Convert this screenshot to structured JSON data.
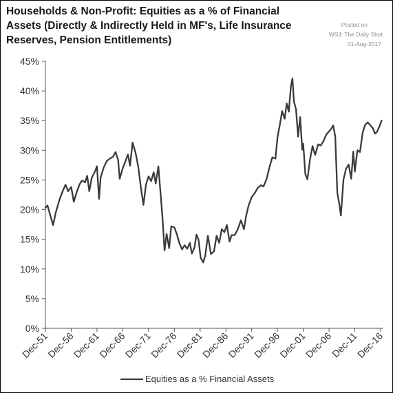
{
  "header": {
    "title_lines": [
      "Households & Non-Profit: Equities as a % of Financial",
      "Assets (Directly & Indirectly Held in MF's, Life Insurance",
      "Reserves, Pension Entitlements)"
    ],
    "posted_lines": [
      "Posted on",
      "WSJ: The Daily Shot",
      "01-Aug-2017"
    ]
  },
  "colors": {
    "series_line": "#3a3a3a",
    "axis": "#555555",
    "text": "#333333",
    "posted_text": "#8c8c8c"
  },
  "chart_data": {
    "type": "line",
    "title": "Households & Non-Profit: Equities as a % of Financial Assets (Directly & Indirectly Held in MF's, Life Insurance Reserves, Pension Entitlements)",
    "xlabel": "",
    "ylabel": "",
    "ylim": [
      0,
      45
    ],
    "xlim": [
      1951.9,
      2017.3
    ],
    "y_ticks": [
      "0%",
      "5%",
      "10%",
      "15%",
      "20%",
      "25%",
      "30%",
      "35%",
      "40%",
      "45%"
    ],
    "x_ticks": [
      "Dec-51",
      "Dec-56",
      "Dec-61",
      "Dec-66",
      "Dec-71",
      "Dec-76",
      "Dec-81",
      "Dec-86",
      "Dec-91",
      "Dec-96",
      "Dec-01",
      "Dec-06",
      "Dec-11",
      "Dec-16"
    ],
    "x_tick_years": [
      1951.9,
      1956.9,
      1961.9,
      1966.9,
      1971.9,
      1976.9,
      1981.9,
      1986.9,
      1991.9,
      1996.9,
      2001.9,
      2006.9,
      2011.9,
      2016.9
    ],
    "grid": false,
    "legend": "bottom-center",
    "series": [
      {
        "name": "Equities as a % Financial Assets",
        "x": [
          1951.9,
          1952.3,
          1952.8,
          1953.4,
          1953.9,
          1954.6,
          1955.2,
          1955.8,
          1956.3,
          1956.9,
          1957.4,
          1957.9,
          1958.5,
          1959.0,
          1959.6,
          1960.0,
          1960.4,
          1960.9,
          1961.5,
          1961.9,
          1962.3,
          1962.6,
          1963.2,
          1963.8,
          1964.4,
          1965.0,
          1965.5,
          1966.0,
          1966.3,
          1966.9,
          1967.4,
          1967.9,
          1968.3,
          1968.8,
          1969.4,
          1969.9,
          1970.4,
          1970.9,
          1971.4,
          1971.9,
          1972.4,
          1972.9,
          1973.3,
          1973.8,
          1974.3,
          1974.6,
          1975.0,
          1975.4,
          1975.9,
          1976.3,
          1976.9,
          1977.4,
          1977.9,
          1978.4,
          1978.9,
          1979.4,
          1979.9,
          1980.3,
          1980.8,
          1981.2,
          1981.6,
          1982.0,
          1982.5,
          1982.9,
          1983.4,
          1984.0,
          1984.6,
          1985.1,
          1985.6,
          1986.1,
          1986.6,
          1987.1,
          1987.6,
          1988.0,
          1988.6,
          1989.2,
          1989.8,
          1990.4,
          1990.8,
          1991.3,
          1991.9,
          1992.5,
          1993.1,
          1993.7,
          1994.2,
          1994.8,
          1995.4,
          1995.9,
          1996.5,
          1996.9,
          1997.4,
          1997.8,
          1998.3,
          1998.7,
          1999.1,
          1999.5,
          1999.8,
          2000.1,
          2000.5,
          2000.9,
          2001.3,
          2001.7,
          2001.9,
          2002.3,
          2002.7,
          2003.2,
          2003.7,
          2004.2,
          2004.8,
          2005.3,
          2005.8,
          2006.4,
          2006.9,
          2007.3,
          2007.7,
          2008.1,
          2008.5,
          2008.9,
          2009.2,
          2009.7,
          2010.2,
          2010.7,
          2011.2,
          2011.6,
          2011.9,
          2012.4,
          2012.9,
          2013.4,
          2013.9,
          2014.4,
          2014.9,
          2015.4,
          2015.8,
          2016.2,
          2016.7,
          2017.1
        ],
        "y": [
          20.3,
          20.7,
          19.2,
          17.4,
          19.5,
          21.6,
          23.0,
          24.2,
          23.1,
          23.8,
          21.3,
          22.8,
          24.2,
          24.9,
          24.6,
          25.7,
          23.1,
          25.4,
          26.4,
          27.3,
          21.8,
          25.4,
          27.1,
          28.2,
          28.6,
          28.9,
          29.7,
          28.4,
          25.2,
          27.0,
          28.1,
          29.3,
          27.4,
          31.3,
          29.5,
          27.2,
          23.8,
          20.8,
          24.2,
          25.6,
          24.8,
          26.3,
          24.4,
          27.3,
          22.0,
          18.6,
          13.1,
          15.9,
          13.5,
          17.2,
          17.0,
          15.8,
          14.3,
          13.3,
          14.0,
          13.4,
          14.4,
          12.6,
          13.6,
          15.8,
          14.9,
          11.9,
          11.1,
          12.3,
          15.6,
          12.5,
          13.0,
          15.6,
          14.4,
          16.7,
          16.2,
          17.4,
          14.6,
          15.7,
          15.7,
          16.7,
          18.2,
          16.7,
          18.9,
          20.7,
          22.1,
          22.8,
          23.7,
          24.1,
          23.9,
          25.2,
          27.3,
          28.8,
          28.6,
          32.2,
          34.5,
          36.6,
          35.3,
          37.9,
          36.5,
          40.7,
          42.1,
          38.2,
          36.9,
          32.3,
          35.6,
          30.1,
          31.1,
          26.0,
          25.1,
          28.4,
          30.7,
          29.2,
          31.0,
          30.8,
          31.5,
          32.7,
          33.2,
          33.6,
          34.2,
          32.3,
          22.8,
          20.9,
          19.0,
          25.1,
          26.9,
          27.6,
          25.2,
          29.8,
          26.4,
          30.0,
          29.7,
          32.9,
          34.3,
          34.7,
          34.2,
          33.7,
          32.8,
          33.1,
          34.1,
          35.0
        ]
      }
    ]
  }
}
